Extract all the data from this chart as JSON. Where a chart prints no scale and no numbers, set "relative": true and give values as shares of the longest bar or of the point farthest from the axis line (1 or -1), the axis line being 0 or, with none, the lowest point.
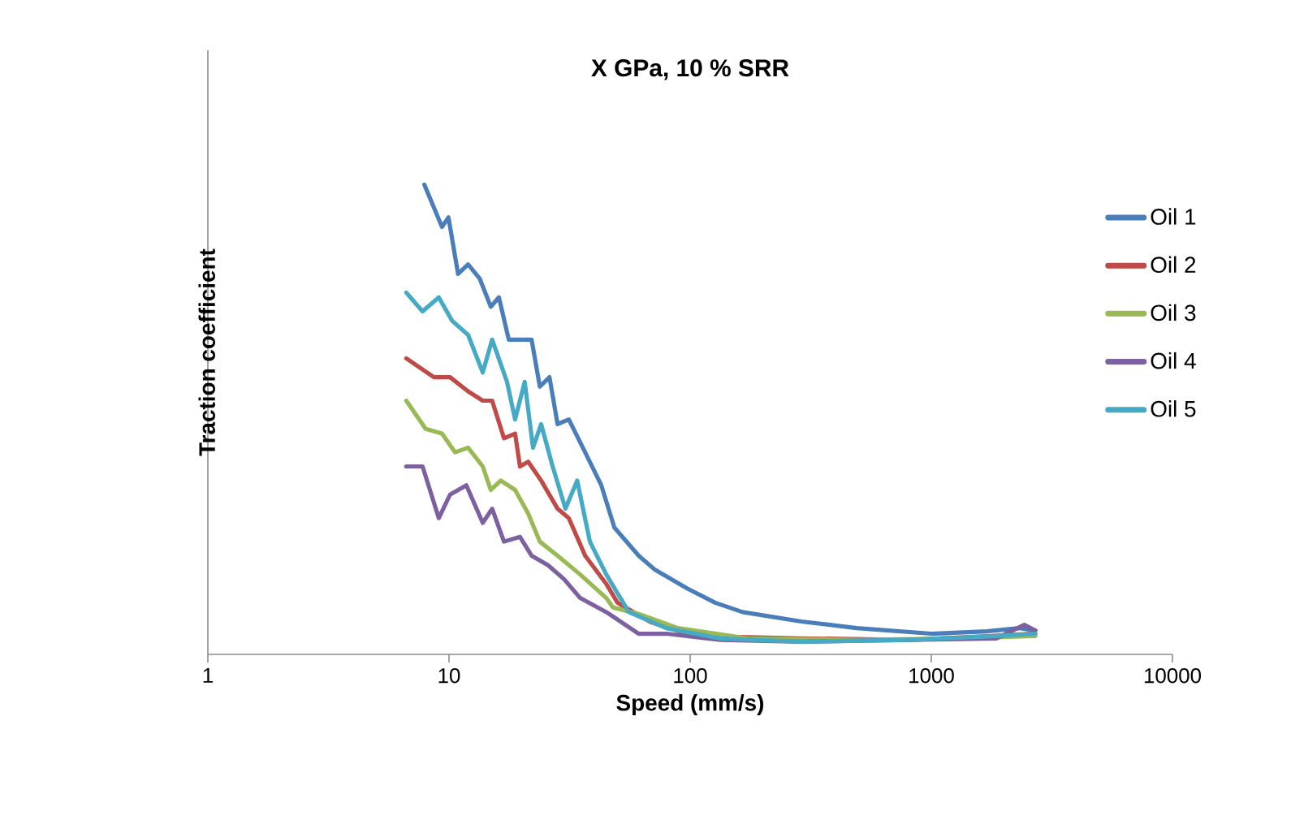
{
  "chart_data": {
    "type": "line",
    "title": "X GPa, 10 % SRR",
    "xlabel": "Speed (mm/s)",
    "ylabel": "Traction coefficient",
    "relative": true,
    "log": "x",
    "xlim": [
      1,
      10000
    ],
    "xticks": [
      1,
      10,
      100,
      1000,
      10000
    ],
    "legend": "right",
    "marker": "none",
    "line_style": "solid",
    "series": [
      {
        "name": "Oil 1",
        "color": "#4a7ebb",
        "x": [
          7.9,
          9.35,
          9.95,
          10.9,
          12,
          13.4,
          14.9,
          16.1,
          17.7,
          22,
          23.8,
          26.1,
          28.2,
          31.4,
          36.7,
          42.8,
          48.5,
          61.2,
          71.5,
          97.5,
          127,
          165,
          289,
          490,
          1000,
          1700,
          2320,
          2700
        ],
        "values": [
          1.0,
          0.91,
          0.93,
          0.81,
          0.83,
          0.8,
          0.74,
          0.76,
          0.67,
          0.67,
          0.57,
          0.59,
          0.49,
          0.5,
          0.43,
          0.36,
          0.27,
          0.21,
          0.18,
          0.14,
          0.11,
          0.09,
          0.07,
          0.056,
          0.044,
          0.049,
          0.056,
          0.051
        ]
      },
      {
        "name": "Oil 2",
        "color": "#be4b48",
        "x": [
          6.65,
          8.66,
          10.1,
          12,
          13.8,
          15.1,
          16.9,
          18.8,
          19.7,
          21.3,
          24.1,
          28.2,
          31.4,
          36.7,
          44.9,
          50,
          68.3,
          104,
          289,
          819,
          1780,
          2700
        ],
        "values": [
          0.63,
          0.59,
          0.59,
          0.56,
          0.54,
          0.54,
          0.46,
          0.47,
          0.4,
          0.41,
          0.37,
          0.31,
          0.29,
          0.21,
          0.15,
          0.11,
          0.069,
          0.039,
          0.034,
          0.031,
          0.039,
          0.044
        ]
      },
      {
        "name": "Oil 3",
        "color": "#98b954",
        "x": [
          6.65,
          8,
          9.35,
          10.6,
          12,
          13.8,
          14.9,
          16.4,
          18.8,
          21.3,
          23.8,
          28.2,
          35,
          44.9,
          47.8,
          61.2,
          88.9,
          173,
          490,
          1370,
          2700
        ],
        "values": [
          0.54,
          0.48,
          0.47,
          0.43,
          0.44,
          0.4,
          0.35,
          0.37,
          0.35,
          0.3,
          0.24,
          0.21,
          0.17,
          0.12,
          0.1,
          0.086,
          0.056,
          0.034,
          0.031,
          0.034,
          0.039
        ]
      },
      {
        "name": "Oil 4",
        "color": "#7d60a0",
        "x": [
          6.65,
          7.77,
          9.07,
          10.1,
          11.8,
          13.8,
          15.1,
          16.9,
          19.7,
          22,
          25.7,
          30,
          35,
          44.9,
          61.2,
          79.6,
          133,
          289,
          819,
          1860,
          2430,
          2700
        ],
        "values": [
          0.4,
          0.4,
          0.29,
          0.34,
          0.36,
          0.28,
          0.31,
          0.24,
          0.25,
          0.21,
          0.19,
          0.16,
          0.12,
          0.09,
          0.044,
          0.044,
          0.031,
          0.027,
          0.031,
          0.034,
          0.063,
          0.051
        ]
      },
      {
        "name": "Oil 5",
        "color": "#46aac5",
        "x": [
          6.65,
          7.77,
          9.07,
          10.3,
          12,
          13.8,
          15.1,
          17.4,
          18.8,
          20.6,
          22.3,
          24.1,
          26.9,
          30.4,
          34,
          38.4,
          44.9,
          55.7,
          79.6,
          133,
          289,
          819,
          1860,
          2700
        ],
        "values": [
          0.77,
          0.73,
          0.76,
          0.71,
          0.68,
          0.6,
          0.67,
          0.58,
          0.5,
          0.58,
          0.44,
          0.49,
          0.4,
          0.31,
          0.37,
          0.24,
          0.17,
          0.09,
          0.056,
          0.034,
          0.027,
          0.031,
          0.039,
          0.044
        ]
      }
    ]
  }
}
